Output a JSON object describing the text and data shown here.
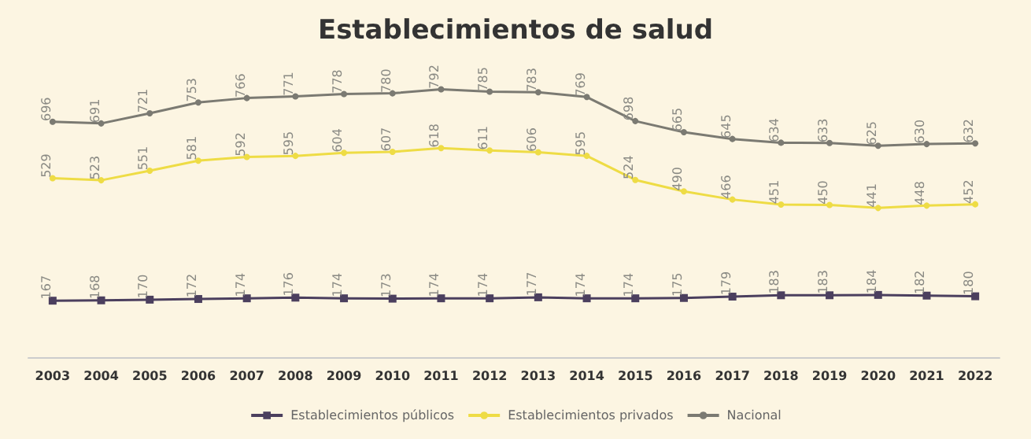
{
  "chart_data": {
    "type": "line",
    "title": "Establecimientos de salud",
    "categories": [
      "2003",
      "2004",
      "2005",
      "2006",
      "2007",
      "2008",
      "2009",
      "2010",
      "2011",
      "2012",
      "2013",
      "2014",
      "2015",
      "2016",
      "2017",
      "2018",
      "2019",
      "2020",
      "2021",
      "2022"
    ],
    "series": [
      {
        "name": "Establecimientos públicos",
        "color": "#4b3f5e",
        "marker": "square",
        "values": [
          167,
          168,
          170,
          172,
          174,
          176,
          174,
          173,
          174,
          174,
          177,
          174,
          174,
          175,
          179,
          183,
          183,
          184,
          182,
          180
        ]
      },
      {
        "name": "Establecimientos privados",
        "color": "#eedc45",
        "marker": "circle",
        "values": [
          529,
          523,
          551,
          581,
          592,
          595,
          604,
          607,
          618,
          611,
          606,
          595,
          524,
          490,
          466,
          451,
          450,
          441,
          448,
          452
        ]
      },
      {
        "name": "Nacional",
        "color": "#7b7a72",
        "marker": "circle",
        "values": [
          696,
          691,
          721,
          753,
          766,
          771,
          778,
          780,
          792,
          785,
          783,
          769,
          698,
          665,
          645,
          634,
          633,
          625,
          630,
          632
        ]
      }
    ],
    "data_labels": true,
    "legend": "bottom"
  }
}
